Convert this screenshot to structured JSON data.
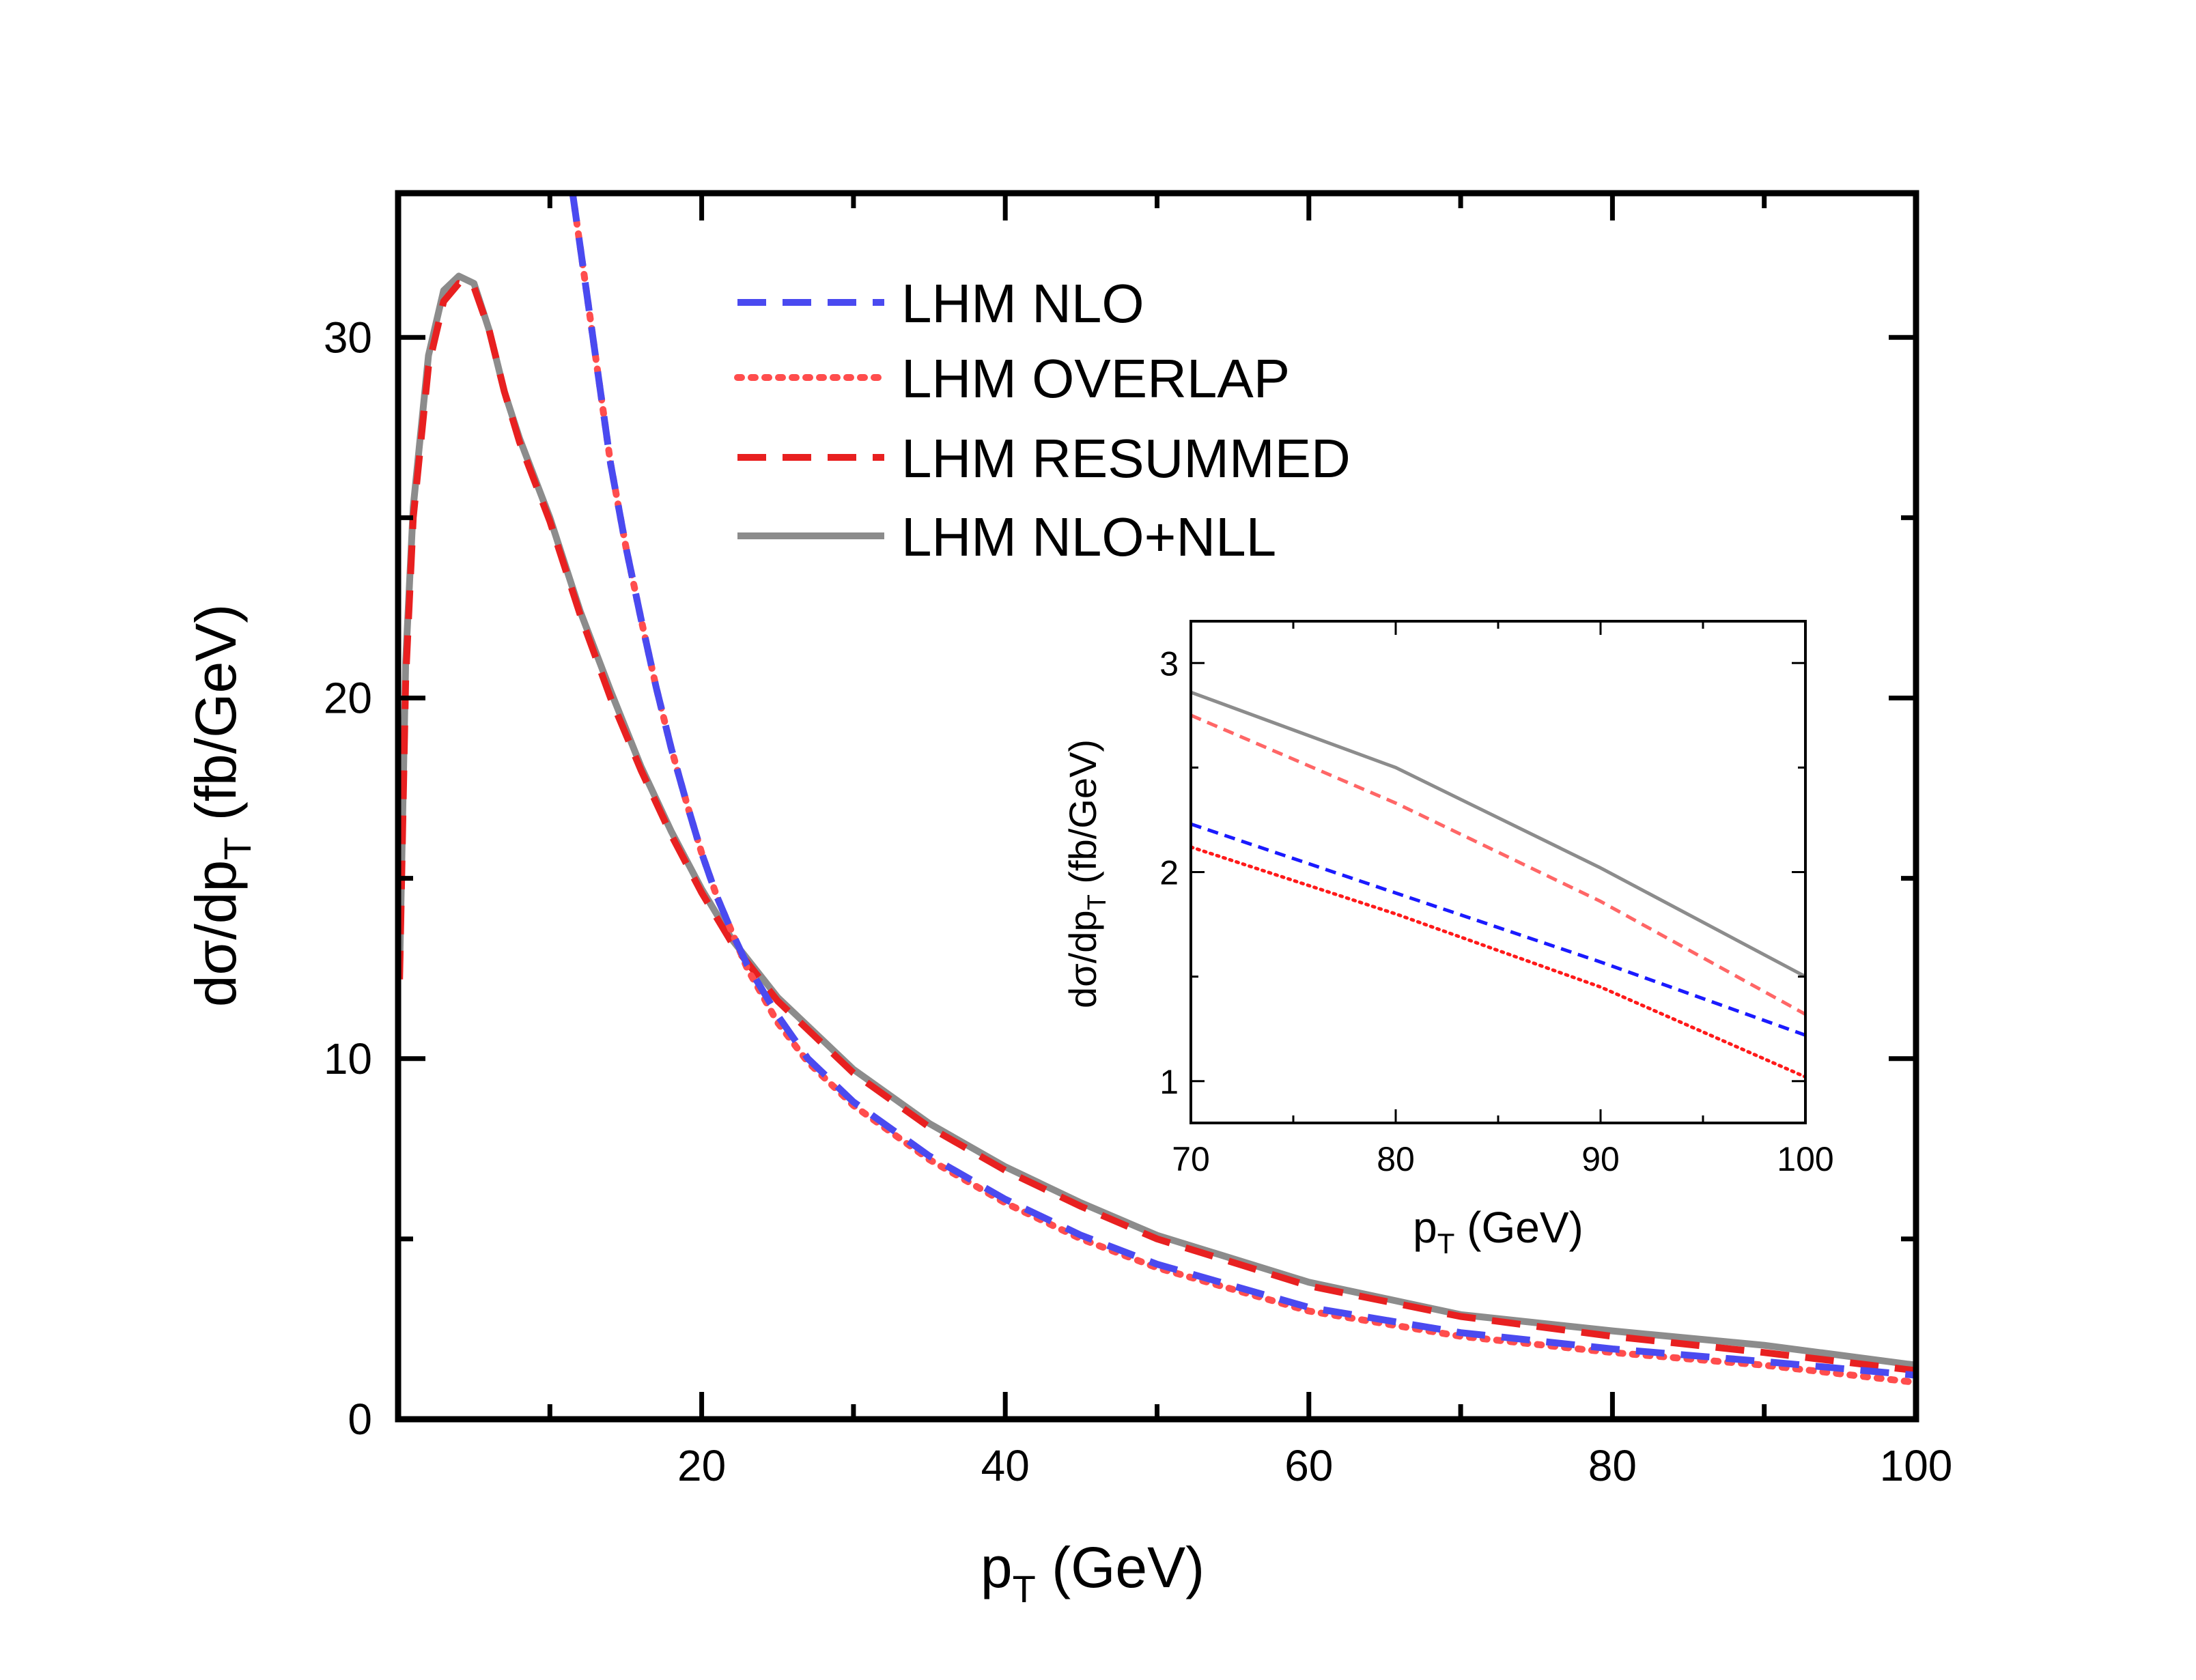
{
  "chart_data": [
    {
      "type": "line",
      "panel": "main",
      "xlabel": {
        "base": "p",
        "sub": "T",
        "unit": " (GeV)"
      },
      "ylabel": {
        "base": "dσ/dp",
        "sub": "T",
        "unit": "  (fb/GeV)"
      },
      "xlim": [
        0,
        100
      ],
      "ylim": [
        0,
        34
      ],
      "xticks": [
        20,
        40,
        60,
        80,
        100
      ],
      "yticks": [
        0,
        10,
        20,
        30
      ],
      "legend_position": "top-center",
      "series": [
        {
          "key": "nlo",
          "name": "LHM NLO",
          "color": "#4a4af0",
          "style": "dashed",
          "x": [
            11.5,
            12,
            13,
            14,
            15,
            16,
            17,
            18,
            19,
            20,
            21,
            22,
            23,
            25,
            27,
            30,
            35,
            40,
            45,
            50,
            60,
            70,
            80,
            90,
            100
          ],
          "y": [
            34,
            32.5,
            29.5,
            26.5,
            24.2,
            22.2,
            20.3,
            18.6,
            17.1,
            15.7,
            14.5,
            13.5,
            12.6,
            11.2,
            10.0,
            8.8,
            7.3,
            6.1,
            5.1,
            4.3,
            3.1,
            2.4,
            1.95,
            1.6,
            1.22
          ]
        },
        {
          "key": "overlap",
          "name": "LHM OVERLAP",
          "color": "#ff4d4d",
          "style": "dotted",
          "x": [
            11.5,
            12,
            13,
            14,
            15,
            16,
            17,
            18,
            19,
            20,
            21,
            22,
            23,
            25,
            27,
            30,
            35,
            40,
            45,
            50,
            60,
            70,
            80,
            90,
            100
          ],
          "y": [
            34,
            32.5,
            29.5,
            26.5,
            24.2,
            22.2,
            20.3,
            18.6,
            17.1,
            15.7,
            14.5,
            13.5,
            12.5,
            11.0,
            9.9,
            8.7,
            7.2,
            6.0,
            5.0,
            4.2,
            3.0,
            2.3,
            1.85,
            1.5,
            1.02
          ]
        },
        {
          "key": "resummed",
          "name": "LHM RESUMMED",
          "color": "#e82020",
          "style": "dashed",
          "x": [
            0.1,
            0.5,
            1,
            2,
            3,
            4,
            5,
            6,
            7,
            8,
            10,
            12,
            14,
            16,
            18,
            20,
            22,
            25,
            30,
            35,
            40,
            45,
            50,
            60,
            70,
            80,
            90,
            100
          ],
          "y": [
            12.2,
            20.5,
            25.0,
            29.2,
            31.0,
            31.5,
            31.4,
            30.2,
            28.5,
            27.1,
            24.9,
            22.3,
            20.0,
            18.0,
            16.2,
            14.6,
            13.2,
            11.6,
            9.6,
            8.1,
            6.9,
            5.9,
            5.0,
            3.7,
            2.85,
            2.3,
            1.85,
            1.35
          ]
        },
        {
          "key": "nlonll",
          "name": "LHM NLO+NLL",
          "color": "#8c8c8c",
          "style": "solid",
          "x": [
            0.1,
            0.5,
            1,
            2,
            3,
            4,
            5,
            6,
            7,
            8,
            10,
            12,
            14,
            16,
            18,
            20,
            22,
            25,
            30,
            35,
            40,
            45,
            50,
            60,
            70,
            80,
            90,
            100
          ],
          "y": [
            12.4,
            21.0,
            25.3,
            29.5,
            31.3,
            31.7,
            31.5,
            30.2,
            28.5,
            27.2,
            25.0,
            22.4,
            20.2,
            18.1,
            16.3,
            14.7,
            13.3,
            11.7,
            9.7,
            8.2,
            7.0,
            6.0,
            5.1,
            3.8,
            2.9,
            2.45,
            2.05,
            1.5
          ]
        }
      ]
    },
    {
      "type": "line",
      "panel": "inset",
      "xlabel": {
        "base": "p",
        "sub": "T",
        "unit": " (GeV)"
      },
      "ylabel": {
        "base": "dσ/dp",
        "sub": "T",
        "unit": "  (fb/GeV)"
      },
      "xlim": [
        70,
        100
      ],
      "ylim": [
        0.8,
        3.2
      ],
      "xticks": [
        70,
        80,
        90,
        100
      ],
      "yticks": [
        1,
        2,
        3
      ],
      "series": [
        {
          "key": "nlo",
          "color": "#1a1aff",
          "style": "dashed",
          "x": [
            70,
            80,
            90,
            100
          ],
          "y": [
            2.23,
            1.9,
            1.57,
            1.22
          ]
        },
        {
          "key": "overlap",
          "color": "#ff1a1a",
          "style": "dotted",
          "x": [
            70,
            80,
            90,
            100
          ],
          "y": [
            2.12,
            1.8,
            1.45,
            1.02
          ]
        },
        {
          "key": "resummed",
          "color": "#ff6666",
          "style": "dashed",
          "x": [
            70,
            80,
            90,
            100
          ],
          "y": [
            2.75,
            2.33,
            1.86,
            1.32
          ]
        },
        {
          "key": "nlonll",
          "color": "#8c8c8c",
          "style": "solid",
          "x": [
            70,
            80,
            90,
            100
          ],
          "y": [
            2.86,
            2.5,
            2.02,
            1.5
          ]
        }
      ]
    }
  ]
}
